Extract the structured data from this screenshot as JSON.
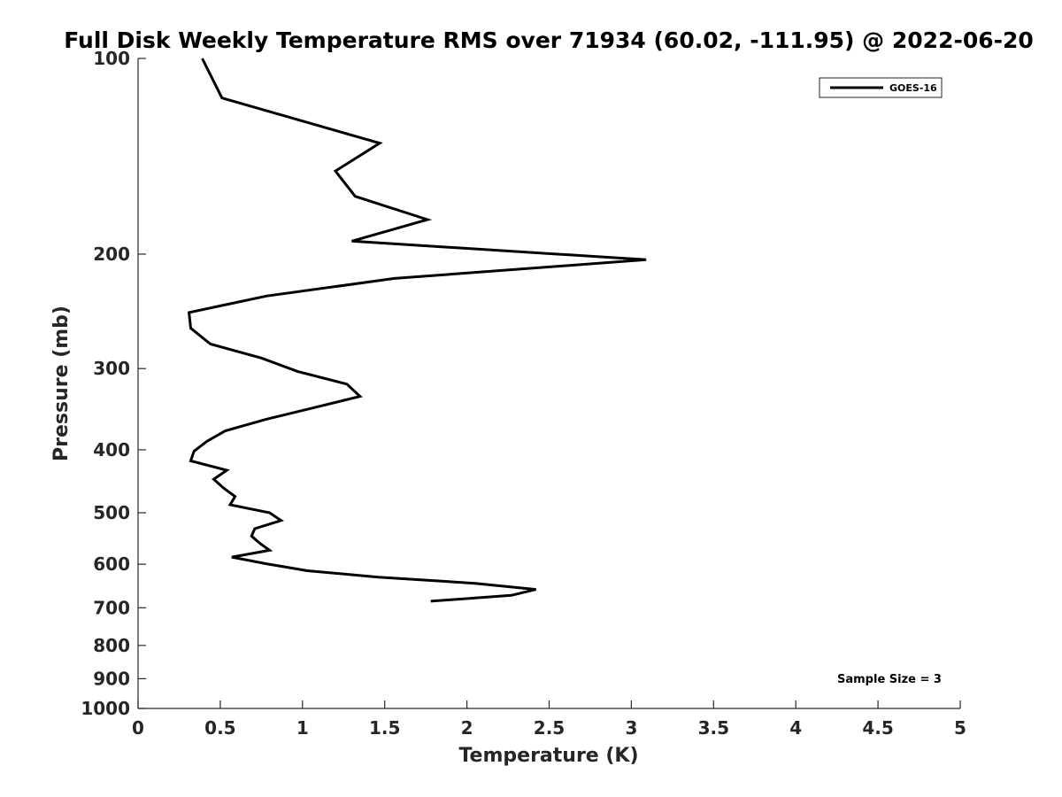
{
  "chart_data": {
    "type": "line",
    "title": "Full Disk Weekly Temperature RMS over 71934 (60.02, -111.95) @ 2022-06-20",
    "xlabel": "Temperature (K)",
    "ylabel": "Pressure (mb)",
    "xlim": [
      0,
      5
    ],
    "ylim": [
      100,
      1000
    ],
    "y_scale": "log",
    "y_reversed": true,
    "xticks": [
      0,
      0.5,
      1,
      1.5,
      2,
      2.5,
      3,
      3.5,
      4,
      4.5,
      5
    ],
    "xtick_labels": [
      "0",
      "0.5",
      "1",
      "1.5",
      "2",
      "2.5",
      "3",
      "3.5",
      "4",
      "4.5",
      "5"
    ],
    "yticks": [
      100,
      200,
      300,
      400,
      500,
      600,
      700,
      800,
      900,
      1000
    ],
    "ytick_labels": [
      "100",
      "200",
      "300",
      "400",
      "500",
      "600",
      "700",
      "800",
      "900",
      "1000"
    ],
    "grid": false,
    "legend_position": "top-right",
    "annotation": "Sample Size = 3",
    "series": [
      {
        "name": "GOES-16",
        "color": "#000000",
        "points": [
          [
            0.39,
            100
          ],
          [
            0.51,
            115
          ],
          [
            1.47,
            135
          ],
          [
            1.2,
            149
          ],
          [
            1.32,
            163
          ],
          [
            1.76,
            177
          ],
          [
            1.3,
            191
          ],
          [
            3.09,
            204
          ],
          [
            1.56,
            218
          ],
          [
            0.78,
            232
          ],
          [
            0.31,
            246
          ],
          [
            0.32,
            260
          ],
          [
            0.44,
            275
          ],
          [
            0.75,
            289
          ],
          [
            0.97,
            303
          ],
          [
            1.27,
            317
          ],
          [
            1.35,
            331
          ],
          [
            1.06,
            345
          ],
          [
            0.78,
            359
          ],
          [
            0.53,
            374
          ],
          [
            0.42,
            388
          ],
          [
            0.34,
            402
          ],
          [
            0.32,
            416
          ],
          [
            0.54,
            430
          ],
          [
            0.46,
            444
          ],
          [
            0.52,
            458
          ],
          [
            0.59,
            472
          ],
          [
            0.56,
            486
          ],
          [
            0.8,
            500
          ],
          [
            0.87,
            514
          ],
          [
            0.71,
            529
          ],
          [
            0.69,
            543
          ],
          [
            0.74,
            557
          ],
          [
            0.8,
            571
          ],
          [
            0.57,
            585
          ],
          [
            0.78,
            599
          ],
          [
            1.03,
            614
          ],
          [
            1.46,
            628
          ],
          [
            2.05,
            642
          ],
          [
            2.42,
            656
          ],
          [
            2.27,
            670
          ],
          [
            1.78,
            684
          ]
        ]
      }
    ]
  }
}
